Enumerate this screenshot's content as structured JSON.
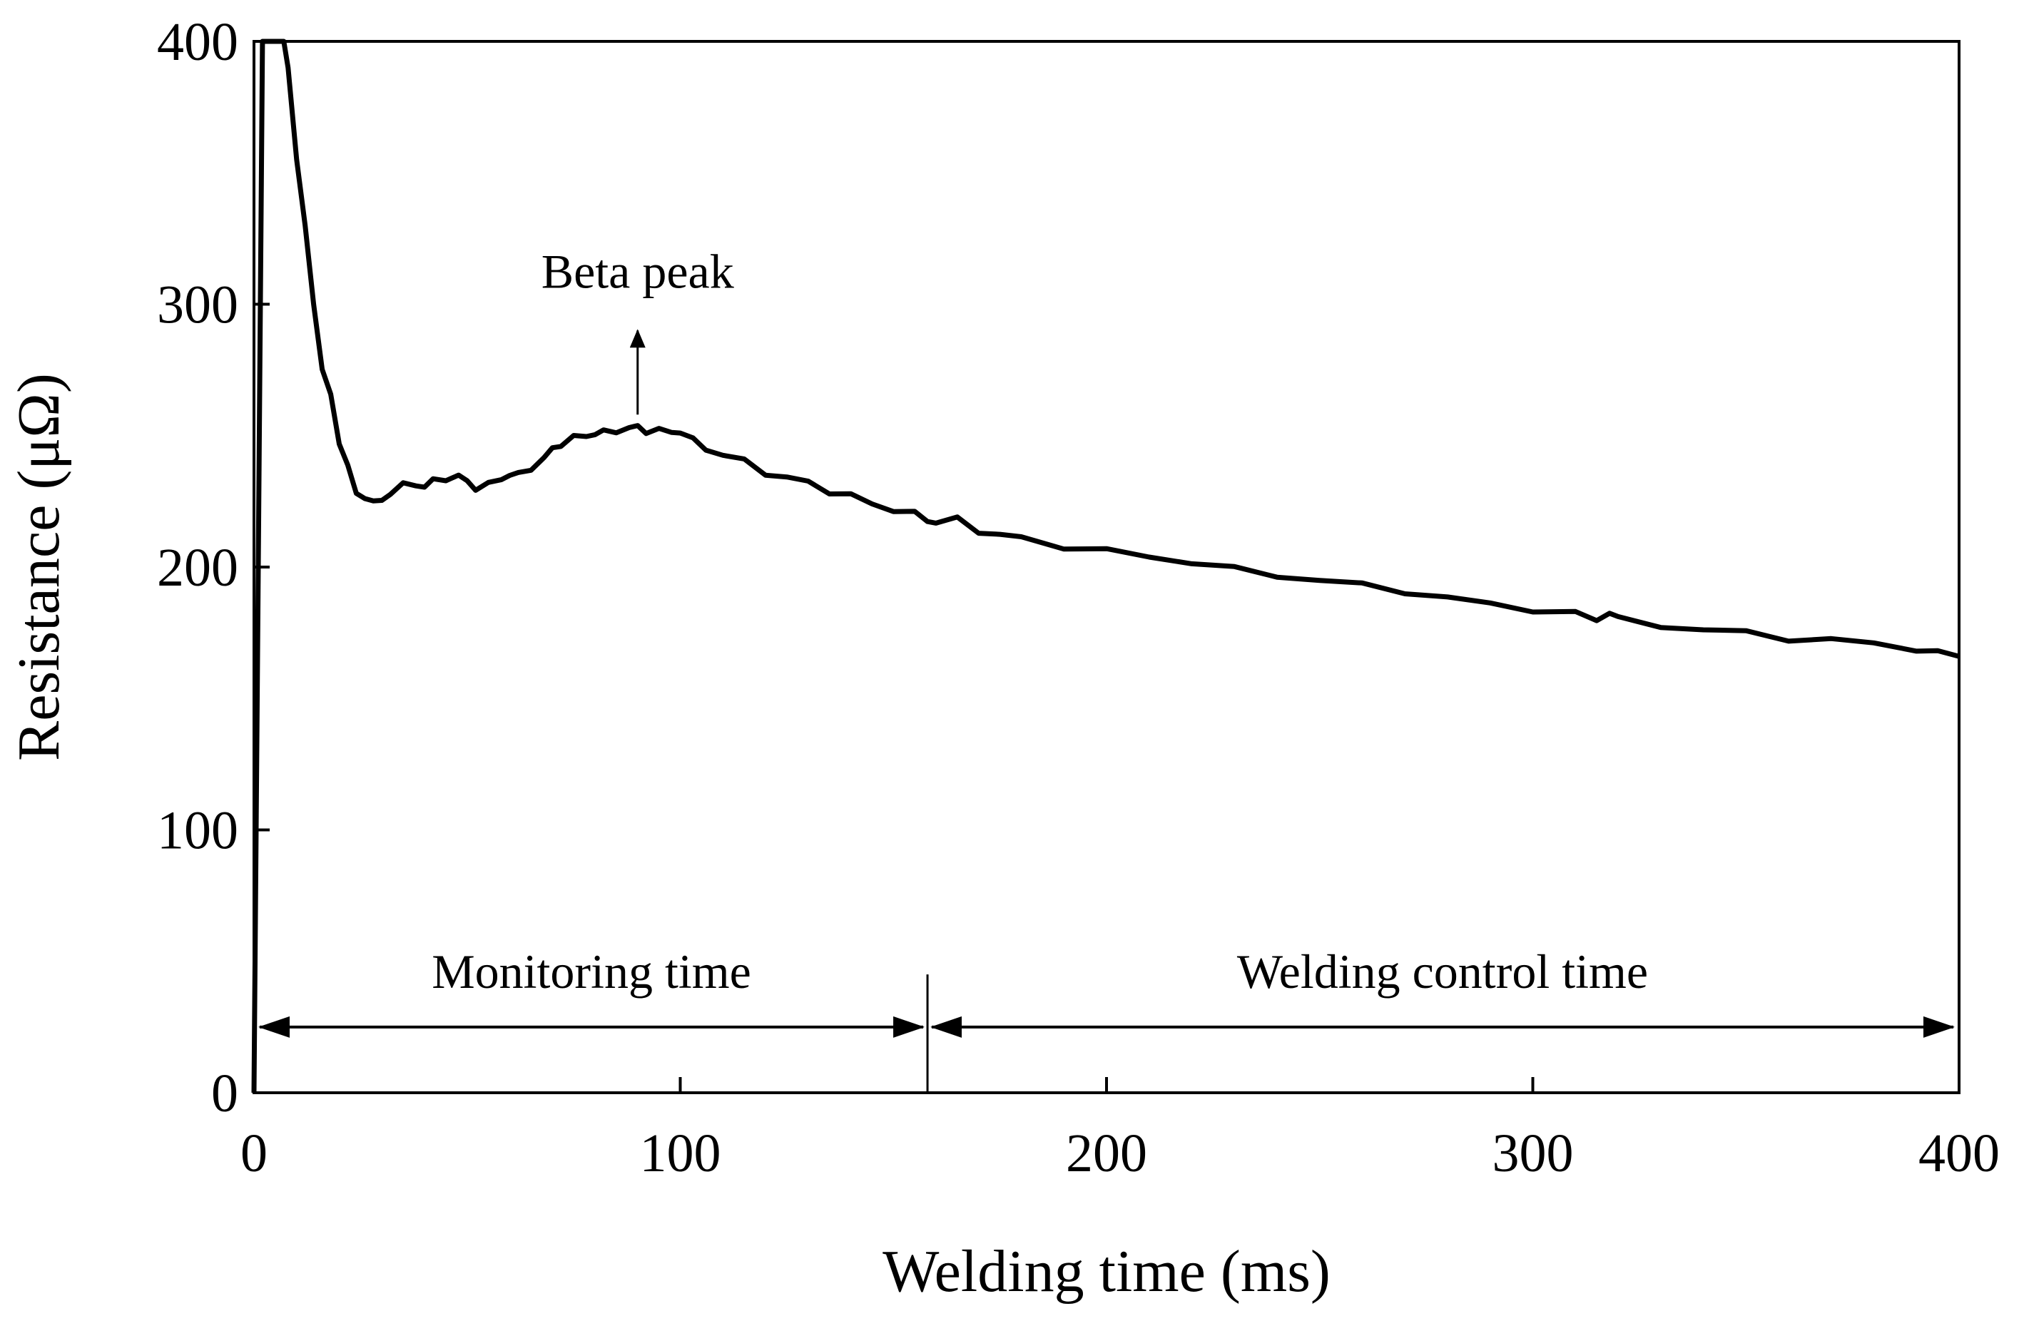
{
  "chart_data": {
    "type": "line",
    "title": "",
    "xlabel": "Welding time (ms)",
    "ylabel": "Resistance (μΩ)",
    "xlim": [
      0,
      400
    ],
    "ylim": [
      0,
      400
    ],
    "xticks": [
      0,
      100,
      200,
      300,
      400
    ],
    "yticks": [
      0,
      100,
      200,
      300,
      400
    ],
    "xtick_labels": [
      "0",
      "100",
      "200",
      "300",
      "400"
    ],
    "ytick_labels": [
      "0",
      "100",
      "200",
      "300",
      "400"
    ],
    "grid": false,
    "legend": "none",
    "series": [
      {
        "name": "Resistance",
        "color": "#000000",
        "x": [
          0,
          1,
          2,
          4,
          5,
          6,
          7,
          8,
          10,
          12,
          14,
          16,
          18,
          20,
          22,
          24,
          26,
          28,
          30,
          32,
          35,
          38,
          40,
          42,
          45,
          48,
          50,
          52,
          55,
          58,
          60,
          62,
          65,
          68,
          70,
          72,
          75,
          78,
          80,
          82,
          85,
          88,
          90,
          92,
          95,
          98,
          100,
          103,
          106,
          110,
          115,
          120,
          125,
          130,
          135,
          140,
          145,
          150,
          155,
          158,
          160,
          165,
          170,
          175,
          180,
          190,
          200,
          210,
          220,
          230,
          240,
          250,
          260,
          270,
          280,
          290,
          300,
          310,
          315,
          318,
          320,
          330,
          340,
          350,
          360,
          370,
          380,
          390,
          395,
          400
        ],
        "y": [
          0,
          200,
          400,
          400,
          400,
          400,
          400,
          390,
          355,
          330,
          300,
          275,
          265,
          248,
          238,
          228,
          227,
          224,
          226,
          228,
          231,
          232,
          230,
          233,
          234,
          234,
          233,
          230,
          231,
          234,
          235,
          235,
          238,
          241,
          245,
          247,
          249,
          250,
          251,
          251,
          252,
          253,
          253,
          252,
          252,
          251,
          252,
          248,
          245,
          243,
          240,
          236,
          234,
          232,
          229,
          227,
          224,
          222,
          220,
          218,
          217,
          218,
          214,
          212,
          211,
          208,
          206,
          204,
          202,
          199,
          197,
          195,
          193,
          191,
          188,
          186,
          184,
          182,
          180,
          183,
          180,
          178,
          176,
          175,
          173,
          172,
          171,
          169,
          167,
          166
        ]
      }
    ],
    "annotations": [
      {
        "text": "Beta peak",
        "arrow_x": 90,
        "arrow_from_y": 258,
        "arrow_to_y": 290
      },
      {
        "text": "Monitoring time",
        "x_range": [
          0,
          158
        ],
        "y": 25
      },
      {
        "text": "Welding control time",
        "x_range": [
          158,
          400
        ],
        "y": 25
      }
    ],
    "divider_x": 158
  }
}
